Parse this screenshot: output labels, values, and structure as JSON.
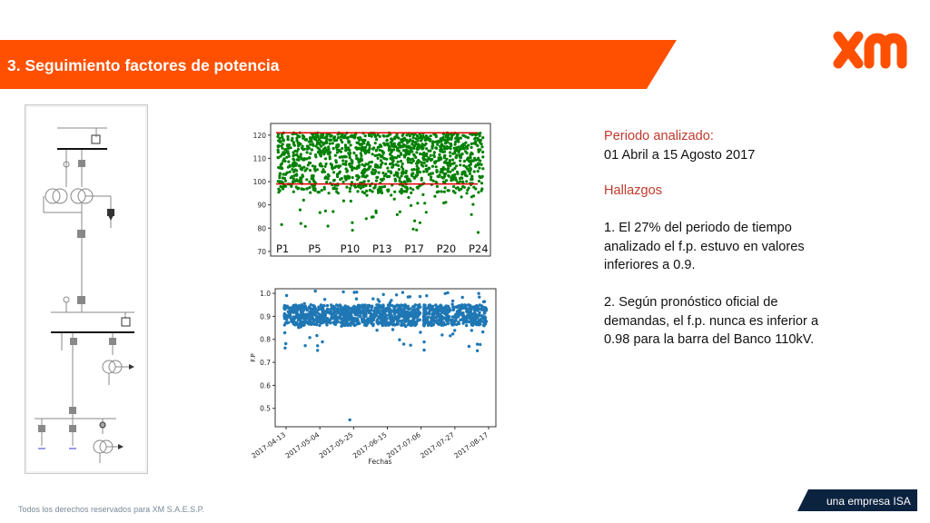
{
  "slide": {
    "title": "3. Seguimiento factores de potencia",
    "brand": {
      "logo_text": "xm",
      "tagline": "una empresa ISA",
      "accent": "#fe5000",
      "tag_color": "#0c2340"
    },
    "footer": "Todos los derechos reservados para XM S.A.E.S.P."
  },
  "analysis": {
    "period_label": "Periodo analizado:",
    "period_value": "01 Abril a 15 Agosto 2017",
    "findings_title": "Hallazgos",
    "findings": [
      "1. El 27% del periodo de tiempo analizado el f.p. estuvo en valores inferiores a 0.9.",
      "2. Según pronóstico oficial de demandas, el f.p. nunca es inferior a 0.98 para la barra del Banco 110kV."
    ]
  },
  "chart_data": [
    {
      "type": "scatter",
      "ylim": [
        68,
        125
      ],
      "yticks": [
        70,
        80,
        90,
        100,
        110,
        120
      ],
      "period_labels": [
        "P1",
        "P5",
        "P10",
        "P13",
        "P17",
        "P20",
        "P24"
      ],
      "reference_lines": [
        121,
        99
      ],
      "series": [
        {
          "color": "#008000",
          "band": [
            95,
            121
          ],
          "outlier_min": 77
        }
      ]
    },
    {
      "type": "scatter",
      "ylabel": "F.P",
      "xlabel": "Fechas",
      "ylim": [
        0.42,
        1.02
      ],
      "yticks": [
        1.0,
        0.9,
        0.8,
        0.7,
        0.6,
        0.5
      ],
      "ytick_labels": [
        "1.0",
        "0.9",
        "0.8",
        "0.7",
        "0.6",
        "0.5"
      ],
      "x": [
        "2017-04-13",
        "2017-05-04",
        "2017-05-25",
        "2017-06-15",
        "2017-07-06",
        "2017-07-27",
        "2017-08-17"
      ],
      "series": [
        {
          "color": "#1f77b4",
          "band": [
            0.86,
            0.95
          ],
          "outlier_min": 0.45
        }
      ]
    }
  ]
}
